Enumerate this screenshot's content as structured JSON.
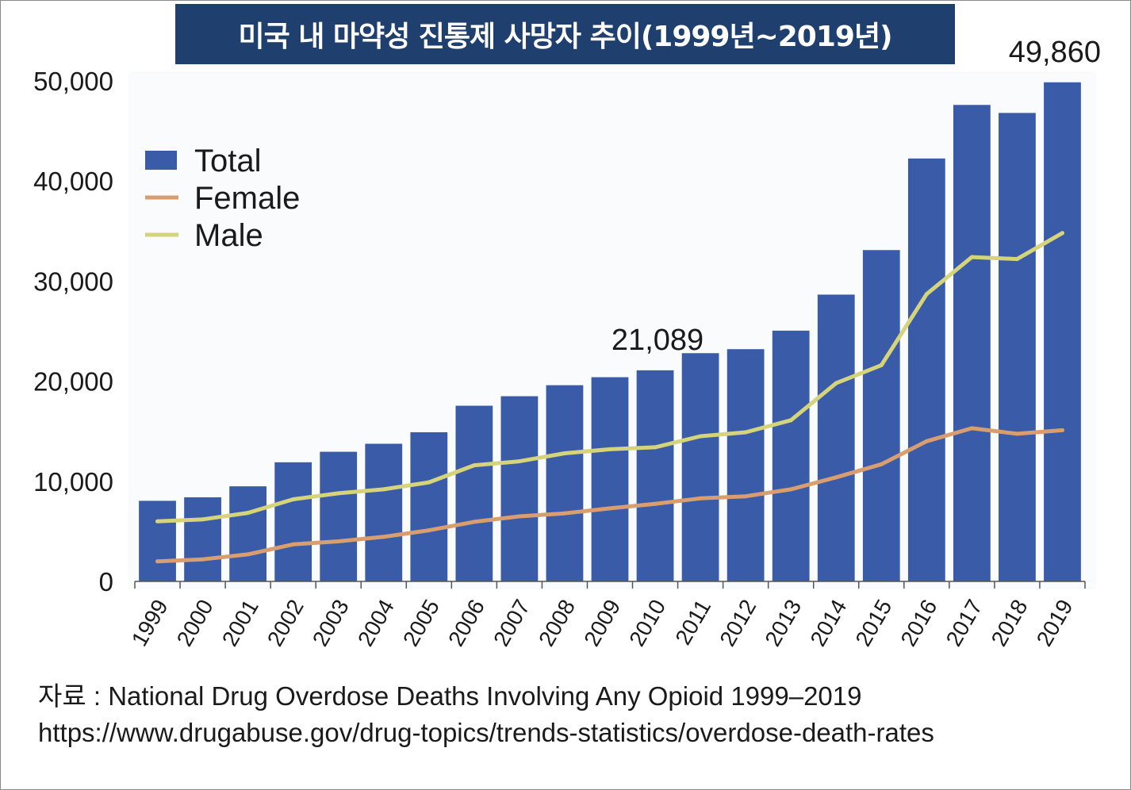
{
  "title": "미국 내 마약성 진통제 사망자 추이(1999년~2019년)",
  "chart_data": {
    "type": "bar",
    "title": "미국 내 마약성 진통제 사망자 추이(1999년~2019년)",
    "categories": [
      "1999",
      "2000",
      "2001",
      "2002",
      "2003",
      "2004",
      "2005",
      "2006",
      "2007",
      "2008",
      "2009",
      "2010",
      "2011",
      "2012",
      "2013",
      "2014",
      "2015",
      "2016",
      "2017",
      "2018",
      "2019"
    ],
    "ylim": [
      0,
      50000
    ],
    "yticks": [
      0,
      10000,
      20000,
      30000,
      40000,
      50000
    ],
    "ytick_labels": [
      "0",
      "10,000",
      "20,000",
      "30,000",
      "40,000",
      "50,000"
    ],
    "grid": false,
    "legend_position": "top-left",
    "series": [
      {
        "name": "Total",
        "kind": "bar",
        "color": "#3a5ba8",
        "values": [
          8050,
          8400,
          9500,
          11900,
          12950,
          13750,
          14900,
          17550,
          18500,
          19600,
          20400,
          21089,
          22800,
          23200,
          25050,
          28650,
          33100,
          42250,
          47600,
          46800,
          49860
        ]
      },
      {
        "name": "Female",
        "kind": "line",
        "color": "#d99e70",
        "values": [
          2000,
          2200,
          2700,
          3700,
          4000,
          4450,
          5100,
          5950,
          6500,
          6800,
          7300,
          7750,
          8300,
          8500,
          9200,
          10400,
          11700,
          14000,
          15300,
          14750,
          15100
        ]
      },
      {
        "name": "Male",
        "kind": "line",
        "color": "#d6d47a",
        "values": [
          6000,
          6200,
          6850,
          8200,
          8800,
          9200,
          9900,
          11600,
          12000,
          12800,
          13200,
          13400,
          14500,
          14900,
          16100,
          19800,
          21600,
          28700,
          32400,
          32200,
          34800
        ]
      }
    ],
    "annotations": [
      {
        "category": "2010",
        "text": "21,089"
      },
      {
        "category": "2019",
        "text": "49,860"
      }
    ]
  },
  "source": {
    "line1": "자료 : National Drug Overdose Deaths Involving Any Opioid 1999–2019",
    "line2": "https://www.drugabuse.gov/drug-topics/trends-statistics/overdose-death-rates"
  }
}
